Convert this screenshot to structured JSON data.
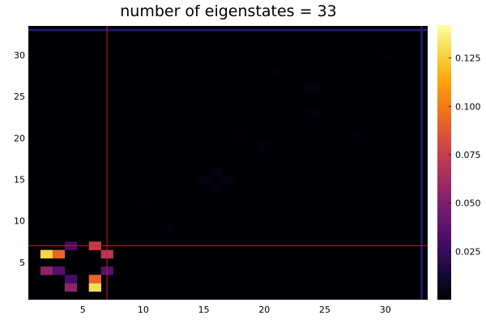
{
  "chart_data": {
    "type": "heatmap",
    "title": "number of eigenstates = 33",
    "xlabel": "",
    "ylabel": "",
    "xlim": [
      0.5,
      33.5
    ],
    "ylim": [
      0.5,
      33.5
    ],
    "x_ticks": [
      5,
      10,
      15,
      20,
      25,
      30
    ],
    "y_ticks": [
      5,
      10,
      15,
      20,
      25,
      30
    ],
    "colorbar": {
      "colormap": "inferno",
      "range": [
        0.0,
        0.142
      ],
      "ticks": [
        0.025,
        0.05,
        0.075,
        0.1,
        0.125
      ],
      "tick_labels": [
        "0.025",
        "0.050",
        "0.075",
        "0.100",
        "0.125"
      ]
    },
    "background_value": 0.0,
    "cells": [
      {
        "x": 2,
        "y": 4,
        "value": 0.055
      },
      {
        "x": 2,
        "y": 6,
        "value": 0.128
      },
      {
        "x": 3,
        "y": 4,
        "value": 0.035
      },
      {
        "x": 3,
        "y": 6,
        "value": 0.092
      },
      {
        "x": 4,
        "y": 2,
        "value": 0.055
      },
      {
        "x": 4,
        "y": 3,
        "value": 0.03
      },
      {
        "x": 4,
        "y": 7,
        "value": 0.03
      },
      {
        "x": 6,
        "y": 2,
        "value": 0.13
      },
      {
        "x": 6,
        "y": 3,
        "value": 0.092
      },
      {
        "x": 6,
        "y": 7,
        "value": 0.075
      },
      {
        "x": 7,
        "y": 4,
        "value": 0.035
      },
      {
        "x": 7,
        "y": 6,
        "value": 0.07
      }
    ],
    "faint_cells": [
      {
        "x": 12,
        "y": 9,
        "value": 0.002
      },
      {
        "x": 10,
        "y": 12,
        "value": 0.0015
      },
      {
        "x": 15,
        "y": 15,
        "value": 0.003
      },
      {
        "x": 16,
        "y": 16,
        "value": 0.003
      },
      {
        "x": 17,
        "y": 15,
        "value": 0.003
      },
      {
        "x": 16,
        "y": 14,
        "value": 0.003
      },
      {
        "x": 18,
        "y": 20,
        "value": 0.002
      },
      {
        "x": 20,
        "y": 19,
        "value": 0.002
      },
      {
        "x": 21,
        "y": 28,
        "value": 0.0015
      },
      {
        "x": 24,
        "y": 23,
        "value": 0.002
      },
      {
        "x": 24,
        "y": 26,
        "value": 0.002
      },
      {
        "x": 28,
        "y": 20,
        "value": 0.0015
      },
      {
        "x": 30,
        "y": 30,
        "value": 0.0015
      }
    ],
    "vline": {
      "x": 7,
      "color": "#c81e1e"
    },
    "hline": {
      "y": 7,
      "color": "#c81e1e"
    },
    "frame": {
      "color": "#1a1a66",
      "top_y": 33,
      "right_x": 33
    },
    "grid": false
  }
}
